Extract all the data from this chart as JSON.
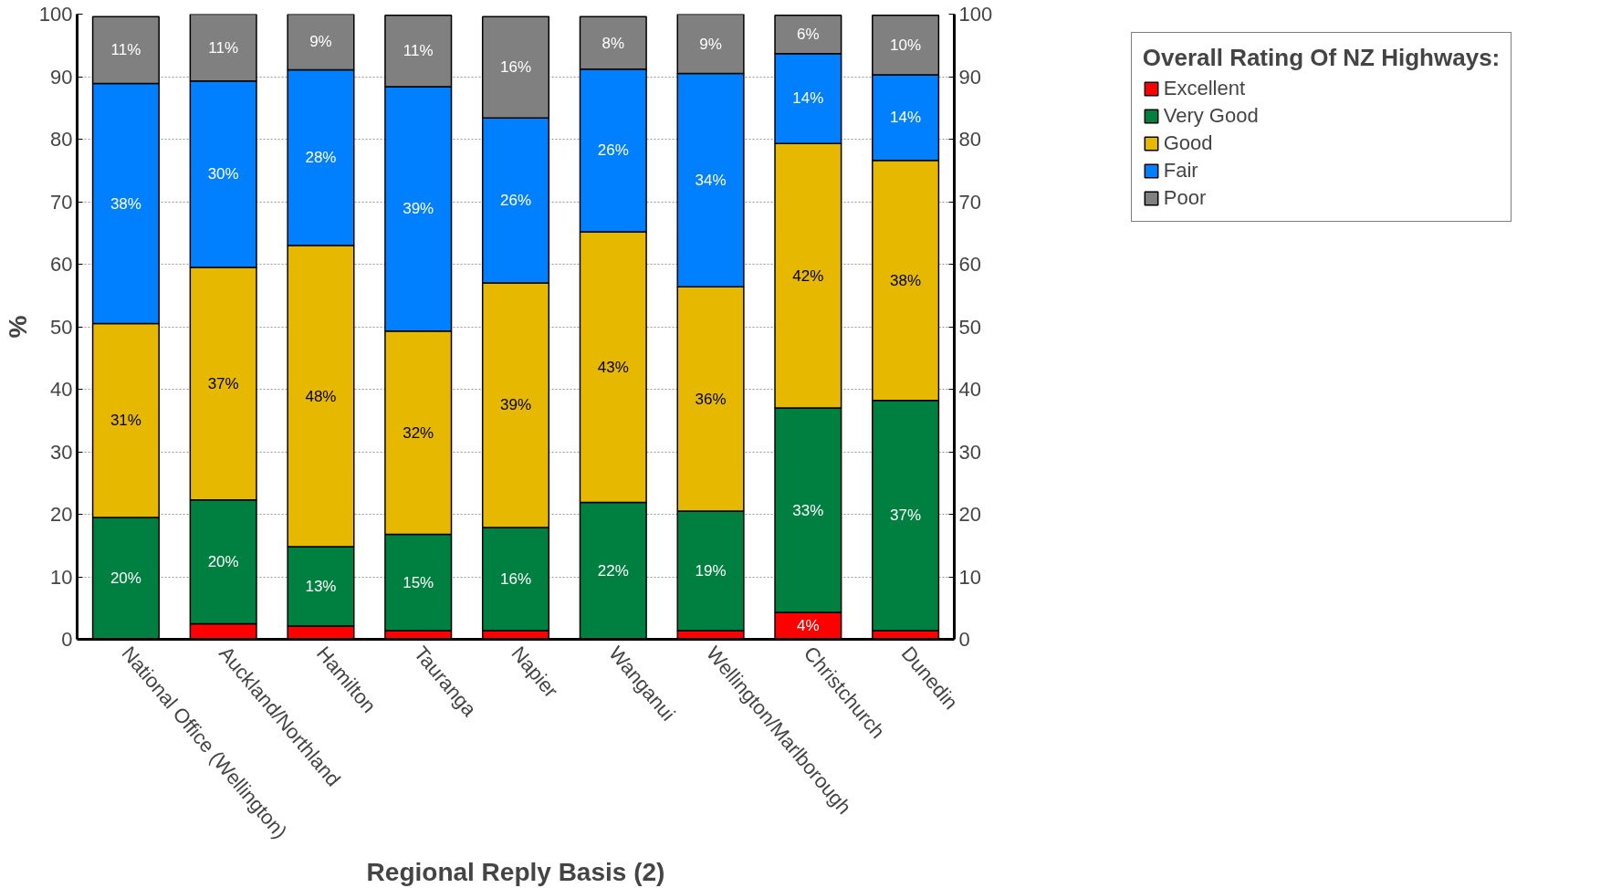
{
  "chart_data": {
    "type": "bar",
    "stacked": true,
    "xlabel": "Regional Reply Basis (2)",
    "ylabel": "%",
    "legend_title": "Overall Rating Of NZ Highways:",
    "legend": "right",
    "grid": "y",
    "categories": [
      "National Office (Wellington)",
      "Auckland/Northland",
      "Hamilton",
      "Tauranga",
      "Napier",
      "Wanganui",
      "Wellington/Marlborough",
      "Christchurch",
      "Dunedin"
    ],
    "ylim": [
      0,
      100
    ],
    "yticks": [
      0,
      10,
      20,
      30,
      40,
      50,
      60,
      70,
      80,
      90,
      100
    ],
    "y2lim": [
      0,
      100
    ],
    "y2ticks": [
      0,
      10,
      20,
      30,
      40,
      50,
      60,
      70,
      80,
      90,
      100
    ],
    "series": [
      {
        "name": "Excellent",
        "color": "#ff0000",
        "values": [
          null,
          2.5,
          2.1,
          1.4,
          1.4,
          null,
          1.4,
          4.3,
          1.4
        ],
        "value_labels": [
          null,
          null,
          null,
          null,
          null,
          null,
          null,
          "4%",
          null
        ]
      },
      {
        "name": "Very Good",
        "color": "#008040",
        "values": [
          19.5,
          19.8,
          12.7,
          15.4,
          16.5,
          21.9,
          19.1,
          32.7,
          36.8
        ],
        "value_labels": [
          "20%",
          "20%",
          "13%",
          "15%",
          "16%",
          "22%",
          "19%",
          "33%",
          "37%"
        ]
      },
      {
        "name": "Good",
        "color": "#e6b800",
        "values": [
          31.0,
          37.2,
          48.2,
          32.5,
          39.1,
          43.3,
          35.9,
          42.3,
          38.4
        ],
        "value_labels": [
          "31%",
          "37%",
          "48%",
          "32%",
          "39%",
          "43%",
          "36%",
          "42%",
          "38%"
        ]
      },
      {
        "name": "Fair",
        "color": "#0080ff",
        "values": [
          38.4,
          29.8,
          28.1,
          39.1,
          26.4,
          26.0,
          34.1,
          14.4,
          13.7
        ],
        "value_labels": [
          "38%",
          "30%",
          "28%",
          "39%",
          "26%",
          "26%",
          "34%",
          "14%",
          "14%"
        ]
      },
      {
        "name": "Poor",
        "color": "#808080",
        "values": [
          10.7,
          10.7,
          8.9,
          11.4,
          16.2,
          8.4,
          9.5,
          6.1,
          9.5
        ],
        "value_labels": [
          "11%",
          "11%",
          "9%",
          "11%",
          "16%",
          "8%",
          "9%",
          "6%",
          "10%"
        ]
      }
    ]
  }
}
